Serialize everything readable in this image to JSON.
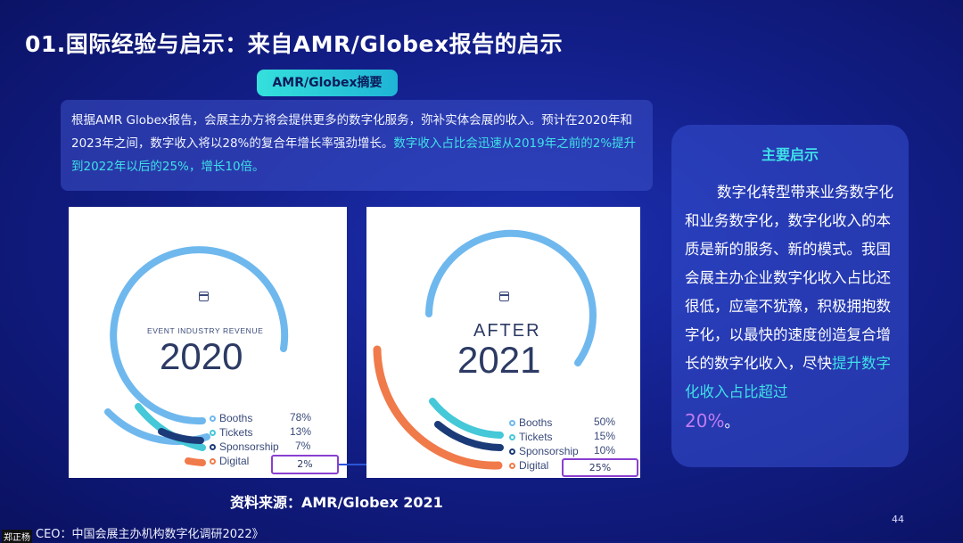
{
  "title": "01.国际经验与启示：来自AMR/Globex报告的启示",
  "tag": "AMR/Globex摘要",
  "summary": {
    "text_plain": "根据AMR Globex报告，会展主办方将会提供更多的数字化服务，弥补实体会展的收入。预计在2020年和2023年之间，数字收入将以28%的复合年增长率强劲增长。",
    "text_highlight": "数字收入占比会迅速从2019年之前的2%提升到2022年以后的25%，增长10倍。"
  },
  "chart_left": {
    "caption": "EVENT INDUSTRY REVENUE",
    "year": "2020",
    "rows": [
      {
        "label": "Booths",
        "value": "78%",
        "share": 78,
        "color": "#6fb8ee"
      },
      {
        "label": "Tickets",
        "value": "13%",
        "share": 13,
        "color": "#45c8d8"
      },
      {
        "label": "Sponsorship",
        "value": "7%",
        "share": 7,
        "color": "#1b3a78"
      },
      {
        "label": "Digital",
        "value": "2%",
        "share": 2,
        "color": "#f07a4a"
      }
    ]
  },
  "chart_right": {
    "caption": "AFTER",
    "year": "2021",
    "rows": [
      {
        "label": "Booths",
        "value": "50%",
        "share": 50,
        "color": "#6fb8ee"
      },
      {
        "label": "Tickets",
        "value": "15%",
        "share": 15,
        "color": "#45c8d8"
      },
      {
        "label": "Sponsorship",
        "value": "10%",
        "share": 10,
        "color": "#1b3a78"
      },
      {
        "label": "Digital",
        "value": "25%",
        "share": 25,
        "color": "#f07a4a"
      }
    ]
  },
  "source": "资料来源：AMR/Globex 2021",
  "panel": {
    "title": "主要启示",
    "body_plain": "数字化转型带来业务数字化和业务数字化，数字化收入的本质是新的服务、新的模式。我国会展主办企业数字化收入占比还很低，应毫不犹豫，积极拥抱数字化，以最快的速度创造复合增长的数字化收入，尽快",
    "body_highlight": "提升数字化收入占比超过",
    "body_pct": "20%",
    "body_end": "。"
  },
  "page_number": "44",
  "footer": "CEO：中国会展主办机构数字化调研2022》",
  "watermark": "郑正杨"
}
